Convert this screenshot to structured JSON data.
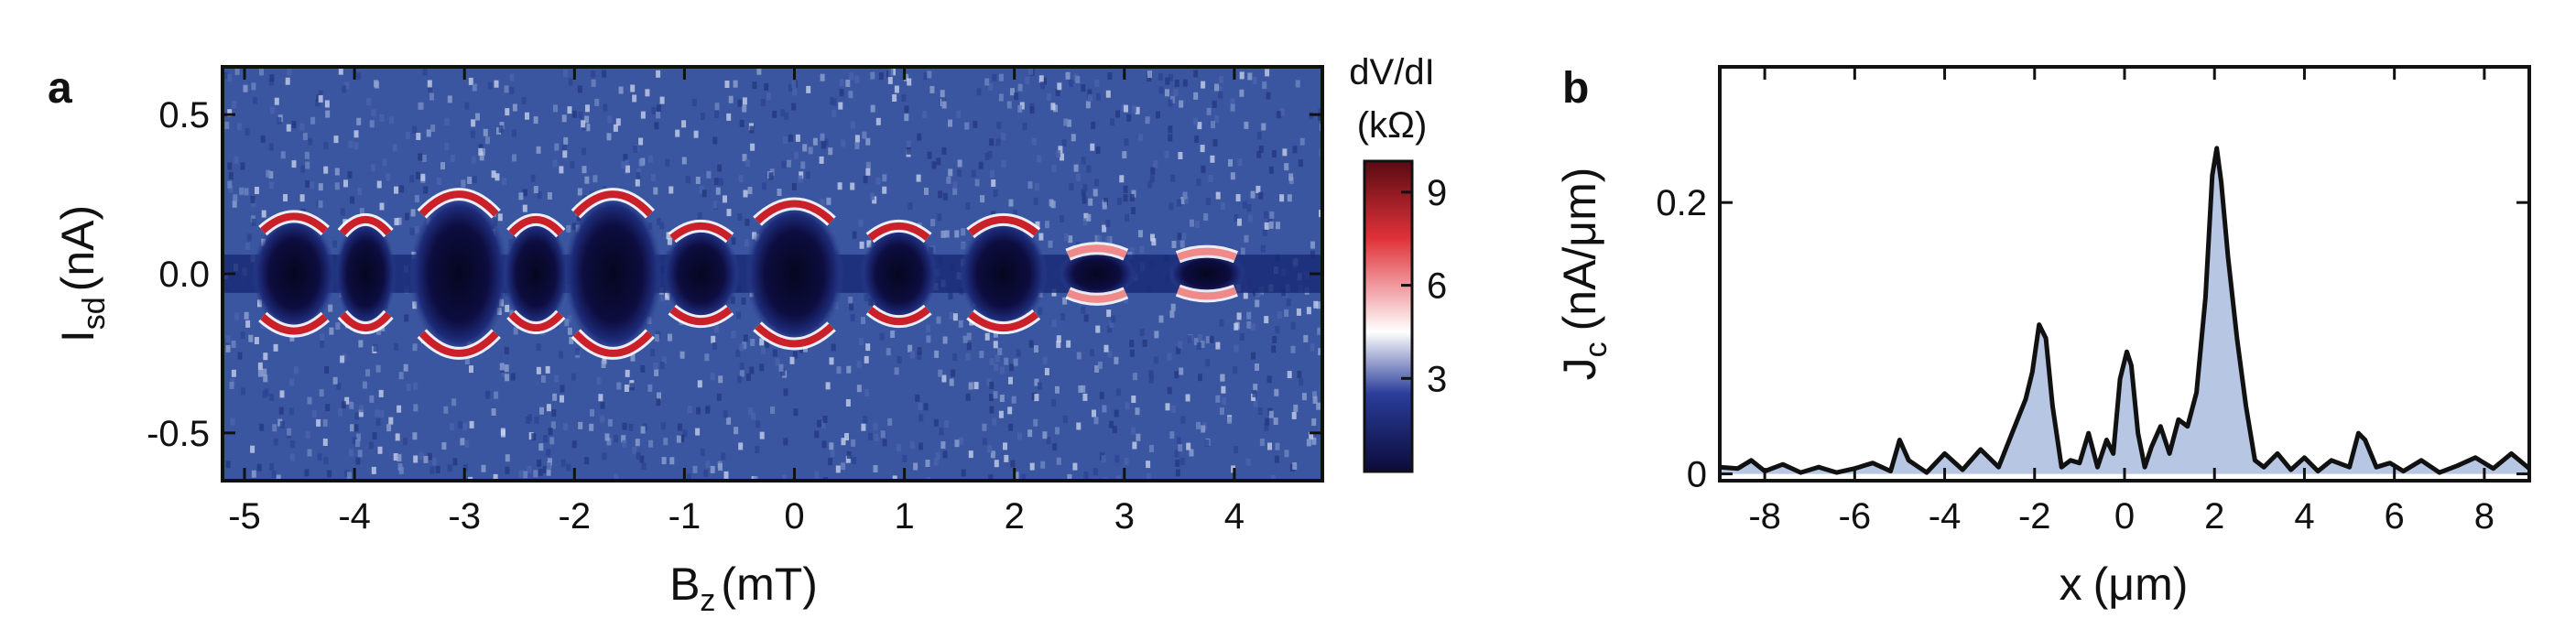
{
  "chart_data": [
    {
      "panel": "a",
      "type": "heatmap",
      "xlabel": "B",
      "xlabel_sub": "z",
      "xlabel_unit": "(mT)",
      "ylabel": "I",
      "ylabel_sub": "sd",
      "ylabel_unit": "(nA)",
      "xlim": [
        -5.2,
        4.8
      ],
      "ylim": [
        -0.65,
        0.65
      ],
      "x_ticks": [
        -5,
        -4,
        -3,
        -2,
        -1,
        0,
        1,
        2,
        3,
        4
      ],
      "x_tick_labels": [
        "-5",
        "-4",
        "-3",
        "-2",
        "-1",
        "0",
        "1",
        "2",
        "3",
        "4"
      ],
      "y_ticks": [
        -0.5,
        0.0,
        0.5
      ],
      "y_tick_labels": [
        "-0.5",
        "0.0",
        "0.5"
      ],
      "colorbar": {
        "title": "dV/dI",
        "unit": "(kΩ)",
        "range": [
          0,
          10
        ],
        "ticks": [
          3,
          6,
          9
        ],
        "tick_labels": [
          "3",
          "6",
          "9"
        ],
        "colors": [
          "#0b0b3a",
          "#2a3d9a",
          "#ffffff",
          "#e0323a",
          "#5a0a12"
        ]
      },
      "background_color": "#3b56a0",
      "lobes": [
        {
          "center_bz": -4.55,
          "halfwidth_bz": 0.38,
          "ic_nA": 0.18
        },
        {
          "center_bz": -3.9,
          "halfwidth_bz": 0.28,
          "ic_nA": 0.17
        },
        {
          "center_bz": -3.05,
          "halfwidth_bz": 0.45,
          "ic_nA": 0.25
        },
        {
          "center_bz": -2.35,
          "halfwidth_bz": 0.3,
          "ic_nA": 0.17
        },
        {
          "center_bz": -1.65,
          "halfwidth_bz": 0.45,
          "ic_nA": 0.25
        },
        {
          "center_bz": -0.85,
          "halfwidth_bz": 0.35,
          "ic_nA": 0.15
        },
        {
          "center_bz": 0.0,
          "halfwidth_bz": 0.45,
          "ic_nA": 0.22
        },
        {
          "center_bz": 0.95,
          "halfwidth_bz": 0.35,
          "ic_nA": 0.15
        },
        {
          "center_bz": 1.9,
          "halfwidth_bz": 0.4,
          "ic_nA": 0.17
        },
        {
          "center_bz": 2.75,
          "halfwidth_bz": 0.35,
          "ic_nA": 0.08
        },
        {
          "center_bz": 3.75,
          "halfwidth_bz": 0.35,
          "ic_nA": 0.07
        }
      ]
    },
    {
      "panel": "b",
      "type": "area",
      "xlabel": "x",
      "xlabel_unit": "(μm)",
      "ylabel": "J",
      "ylabel_sub": "c",
      "ylabel_unit": "(nA/μm)",
      "xlim": [
        -9,
        9
      ],
      "ylim": [
        -0.005,
        0.3
      ],
      "x_ticks": [
        -8,
        -6,
        -4,
        -2,
        0,
        2,
        4,
        6,
        8
      ],
      "x_tick_labels": [
        "-8",
        "-6",
        "-4",
        "-2",
        "0",
        "2",
        "4",
        "6",
        "8"
      ],
      "y_ticks": [
        0,
        0.2
      ],
      "y_tick_labels": [
        "0",
        "0.2"
      ],
      "fill_color": "#b7c6e3",
      "line_color": "#111111",
      "x": [
        -9.0,
        -8.6,
        -8.3,
        -8.0,
        -7.6,
        -7.2,
        -6.8,
        -6.4,
        -6.0,
        -5.6,
        -5.2,
        -5.0,
        -4.8,
        -4.4,
        -4.0,
        -3.6,
        -3.2,
        -2.8,
        -2.5,
        -2.2,
        -2.05,
        -1.9,
        -1.75,
        -1.6,
        -1.4,
        -1.2,
        -1.0,
        -0.8,
        -0.6,
        -0.4,
        -0.25,
        -0.1,
        0.05,
        0.15,
        0.3,
        0.45,
        0.6,
        0.8,
        1.0,
        1.2,
        1.4,
        1.6,
        1.8,
        1.95,
        2.05,
        2.15,
        2.3,
        2.5,
        2.7,
        2.9,
        3.1,
        3.4,
        3.7,
        4.0,
        4.3,
        4.6,
        5.0,
        5.2,
        5.35,
        5.6,
        5.9,
        6.2,
        6.6,
        7.0,
        7.4,
        7.8,
        8.2,
        8.6,
        9.0
      ],
      "y": [
        0.005,
        0.004,
        0.01,
        0.002,
        0.007,
        0.001,
        0.005,
        0.001,
        0.004,
        0.008,
        0.002,
        0.025,
        0.01,
        0.001,
        0.015,
        0.003,
        0.018,
        0.005,
        0.03,
        0.055,
        0.075,
        0.11,
        0.1,
        0.05,
        0.005,
        0.01,
        0.008,
        0.03,
        0.005,
        0.025,
        0.015,
        0.07,
        0.09,
        0.08,
        0.03,
        0.005,
        0.02,
        0.035,
        0.015,
        0.04,
        0.035,
        0.06,
        0.13,
        0.22,
        0.24,
        0.215,
        0.16,
        0.1,
        0.05,
        0.01,
        0.005,
        0.015,
        0.003,
        0.012,
        0.002,
        0.01,
        0.005,
        0.03,
        0.025,
        0.005,
        0.008,
        0.002,
        0.01,
        0.001,
        0.006,
        0.012,
        0.004,
        0.015,
        0.004
      ]
    }
  ]
}
